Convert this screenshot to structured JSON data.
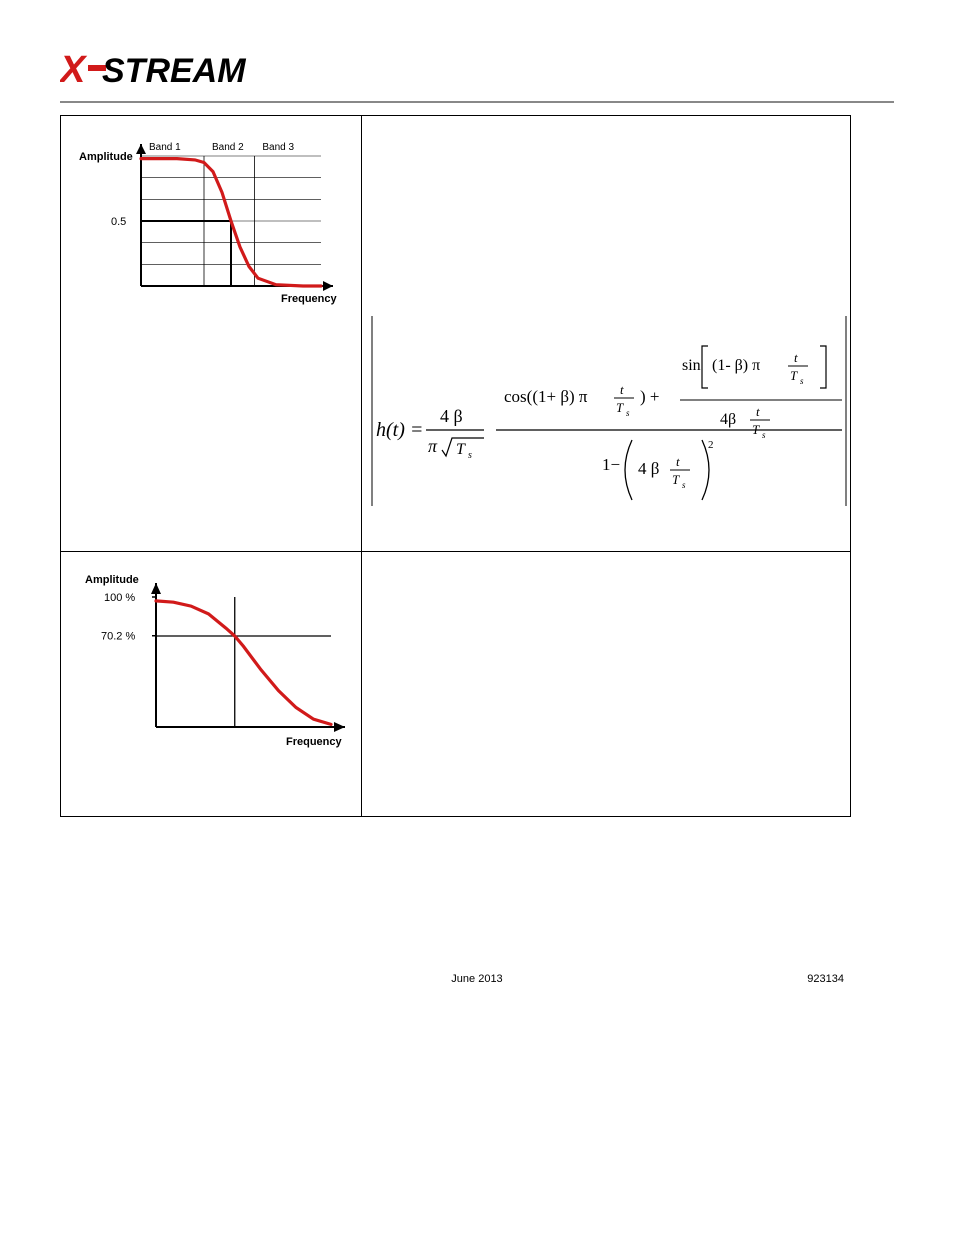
{
  "logo": {
    "text_main": "STREAM",
    "x_color": "#d11a1a",
    "text_color": "#000000"
  },
  "footer": {
    "date": "June 2013",
    "docid": "923134"
  },
  "chart1": {
    "type": "line",
    "x_axis_label": "Frequency",
    "y_axis_label": "Amplitude",
    "y_ticks": [
      "0.5"
    ],
    "band_labels": [
      "Band 1",
      "Band 2",
      "Band 3"
    ],
    "curve_color": "#d11a1a",
    "grid_color": "#000000",
    "bg_color": "#ffffff",
    "ylim": [
      0,
      1
    ],
    "band_boundaries": [
      0.35,
      0.63
    ],
    "curve_points": [
      [
        0.0,
        0.98
      ],
      [
        0.1,
        0.98
      ],
      [
        0.2,
        0.98
      ],
      [
        0.3,
        0.97
      ],
      [
        0.35,
        0.95
      ],
      [
        0.4,
        0.88
      ],
      [
        0.45,
        0.72
      ],
      [
        0.5,
        0.5
      ],
      [
        0.55,
        0.3
      ],
      [
        0.6,
        0.15
      ],
      [
        0.65,
        0.06
      ],
      [
        0.75,
        0.01
      ],
      [
        0.9,
        0.0
      ],
      [
        1.0,
        0.0
      ]
    ],
    "horiz_half_line_y": 0.5,
    "vert_half_line_x": 0.5
  },
  "chart2": {
    "type": "line",
    "x_axis_label": "Frequency",
    "y_axis_label": "Amplitude",
    "y_ticks": [
      "100 %",
      "70.2 %"
    ],
    "curve_color": "#d11a1a",
    "axis_color": "#000000",
    "bg_color": "#ffffff",
    "ylim": [
      0,
      1
    ],
    "curve_points": [
      [
        0.0,
        0.97
      ],
      [
        0.1,
        0.96
      ],
      [
        0.2,
        0.93
      ],
      [
        0.3,
        0.87
      ],
      [
        0.4,
        0.76
      ],
      [
        0.45,
        0.7
      ],
      [
        0.5,
        0.62
      ],
      [
        0.6,
        0.44
      ],
      [
        0.7,
        0.28
      ],
      [
        0.8,
        0.15
      ],
      [
        0.9,
        0.06
      ],
      [
        1.0,
        0.02
      ]
    ],
    "cross_x": 0.45,
    "cross_y": 0.7
  },
  "formula": {
    "lhs": "h(t) =",
    "coef_num": "4 β",
    "coef_den_pi": "π",
    "coef_den_sqrt": "T",
    "coef_den_sqrt_sub": "s",
    "big_num_cos": "cos((1+ β) π",
    "t_over_Ts_t": "t",
    "t_over_Ts_T": "T",
    "t_over_Ts_s": "s",
    "cos_close": ") +",
    "sin_open": "sin",
    "sin_arg_prefix": "(1- β) π",
    "small_denom_prefix": "4β",
    "big_den_prefix": "1−",
    "big_den_coeff": "4 β",
    "big_den_exp": "2",
    "font_color": "#000000",
    "font_family": "serif"
  }
}
